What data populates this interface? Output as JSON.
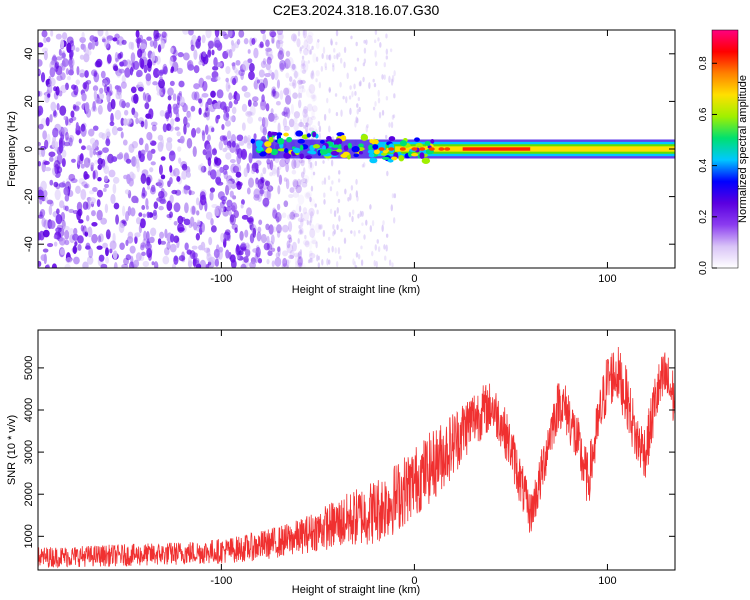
{
  "figure": {
    "title": "C2E3.2024.318.16.07.G30"
  },
  "chart_data": [
    {
      "type": "heatmap",
      "xlabel": "Height of straight line (km)",
      "ylabel": "Frequency (Hz)",
      "xlim": [
        -195,
        135
      ],
      "ylim": [
        -50,
        50
      ],
      "xticks": [
        -100,
        0,
        100
      ],
      "xtick_labels": [
        "-100",
        "0",
        "100"
      ],
      "yticks": [
        -40,
        -20,
        0,
        20,
        40
      ],
      "ytick_labels": [
        "-40",
        "-20",
        "0",
        "20",
        "40"
      ],
      "grid": false,
      "colorbar": {
        "label": "Normalized spectral amplitude",
        "range": [
          0.0,
          0.93
        ],
        "ticks": [
          0.0,
          0.2,
          0.4,
          0.6,
          0.8
        ],
        "tick_labels": [
          "0.0",
          "0.2",
          "0.4",
          "0.6",
          "0.8"
        ],
        "colormap": [
          "#ffffff",
          "#d9c4f7",
          "#8b3cf0",
          "#5a00e0",
          "#0000ff",
          "#00c8ff",
          "#00e070",
          "#a0f000",
          "#ffe000",
          "#ff8000",
          "#ff0000",
          "#ff0080"
        ]
      },
      "features": {
        "noise_region_x": [
          -195,
          -60
        ],
        "signal_start_x": -84,
        "signal_center_frequency": 0,
        "signal_halfwidth_hz": 4,
        "bright_core_x": [
          25,
          60
        ],
        "perturbation_x": [
          -84,
          -15
        ]
      }
    },
    {
      "type": "line",
      "xlabel": "Height of straight line (km)",
      "ylabel": "SNR (10 * v/v)",
      "xlim": [
        -195,
        135
      ],
      "ylim": [
        200,
        5900
      ],
      "xticks": [
        -100,
        0,
        100
      ],
      "xtick_labels": [
        "-100",
        "0",
        "100"
      ],
      "yticks": [
        1000,
        2000,
        3000,
        4000,
        5000
      ],
      "ytick_labels": [
        "1000",
        "2000",
        "3000",
        "4000",
        "5000"
      ],
      "grid": false,
      "color": "#f03030",
      "x": [
        -195,
        -180,
        -160,
        -140,
        -120,
        -100,
        -90,
        -80,
        -70,
        -60,
        -50,
        -40,
        -30,
        -20,
        -10,
        0,
        10,
        20,
        30,
        40,
        45,
        50,
        55,
        60,
        65,
        70,
        75,
        80,
        85,
        90,
        95,
        100,
        105,
        110,
        115,
        120,
        125,
        130,
        135
      ],
      "y": [
        500,
        520,
        540,
        560,
        600,
        650,
        700,
        780,
        870,
        980,
        1150,
        1300,
        1450,
        1600,
        1900,
        2300,
        2700,
        3200,
        3800,
        4100,
        3700,
        3100,
        2300,
        1500,
        2300,
        3400,
        4200,
        3900,
        3100,
        2300,
        3600,
        4700,
        4900,
        4300,
        3300,
        3000,
        4300,
        4800,
        4200
      ],
      "noise_amplitude": [
        250,
        250,
        260,
        270,
        280,
        300,
        320,
        350,
        380,
        420,
        500,
        600,
        700,
        800,
        850,
        850,
        850,
        800,
        700,
        600,
        600,
        600,
        600,
        500,
        600,
        600,
        600,
        650,
        700,
        650,
        700,
        700,
        700,
        700,
        650,
        650,
        700,
        700,
        700
      ]
    }
  ]
}
